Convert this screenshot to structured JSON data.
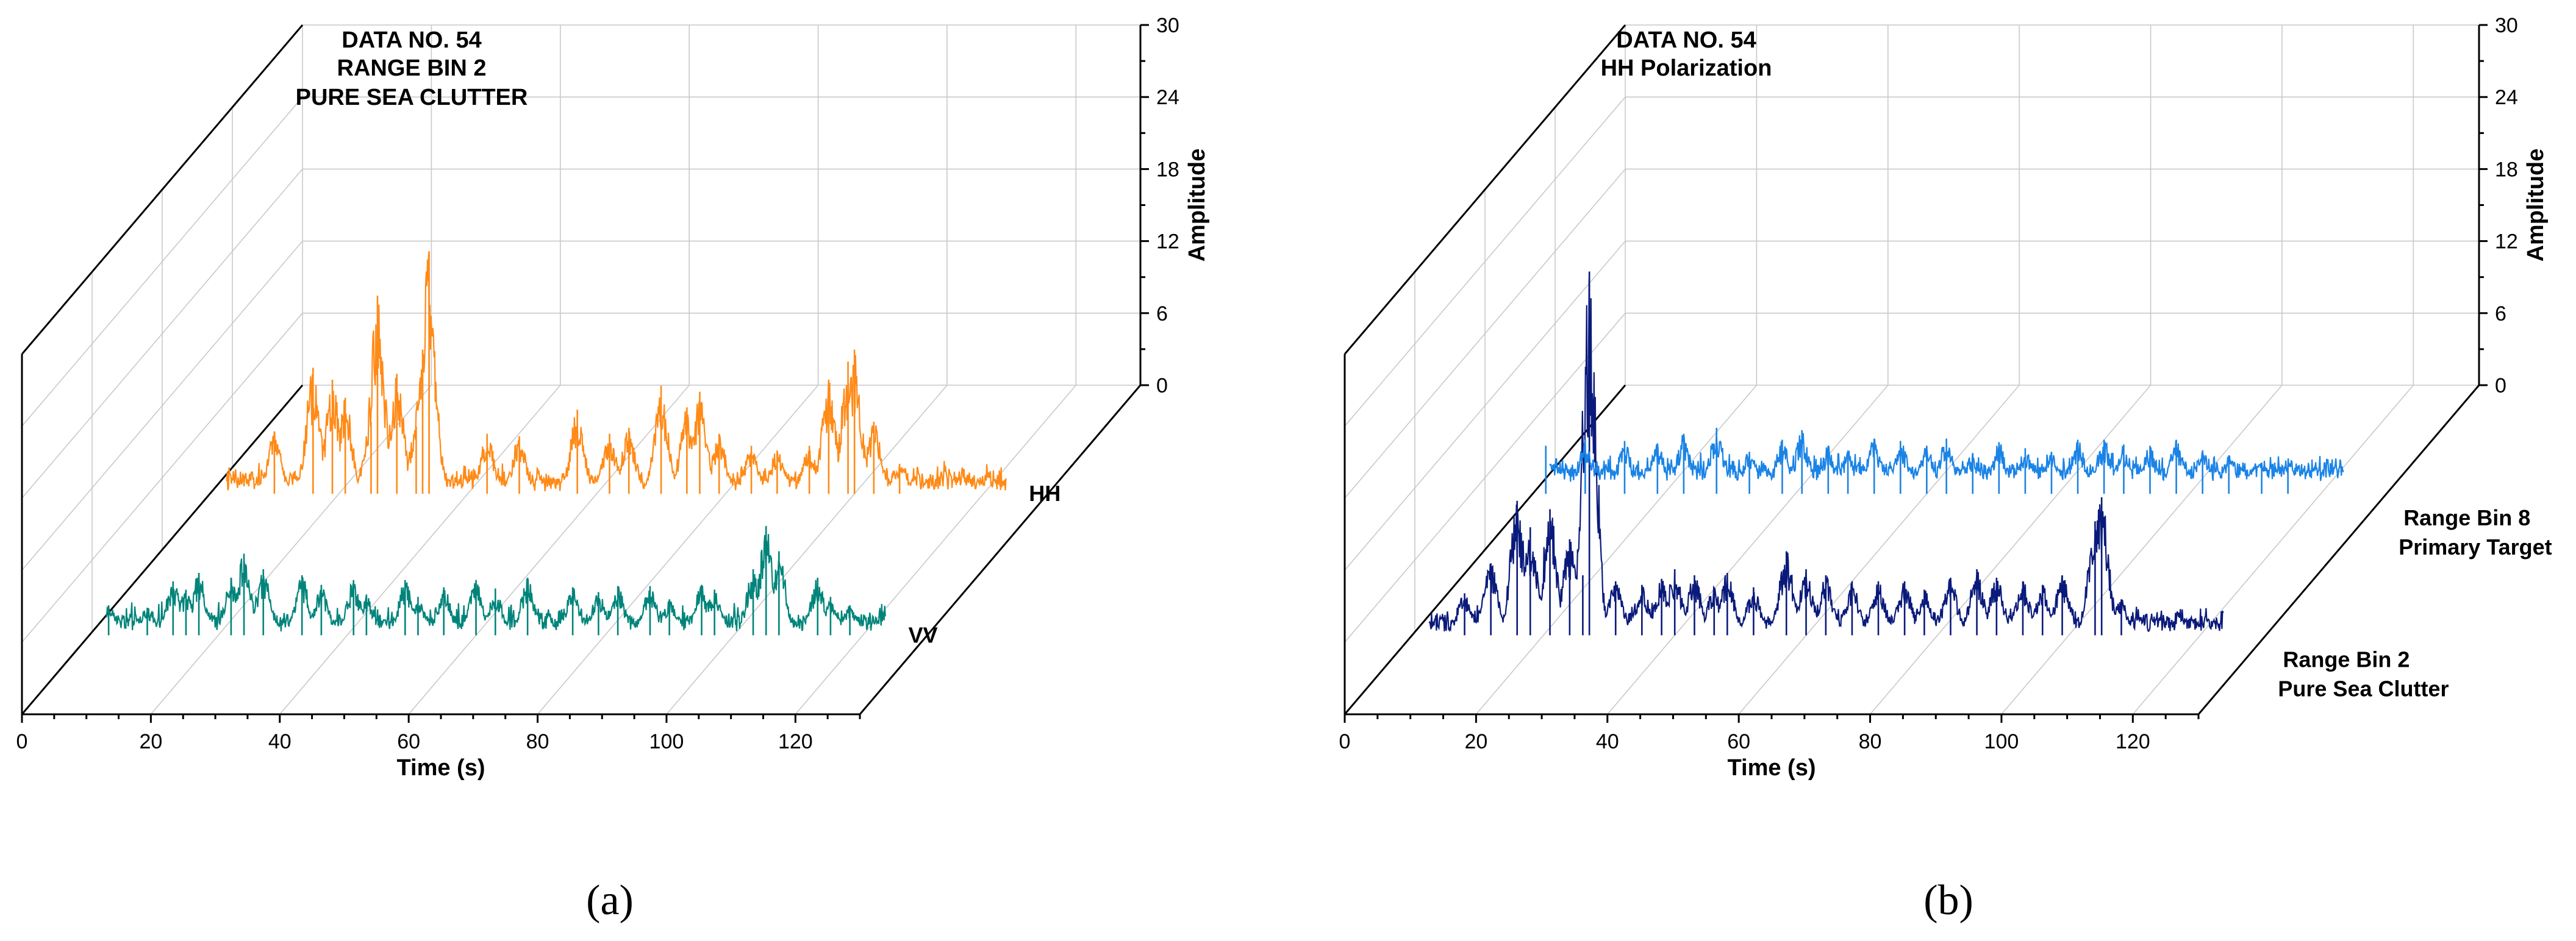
{
  "chart_data": [
    {
      "type": "line",
      "panel_caption": "(a)",
      "annotation": [
        "DATA NO. 54",
        "RANGE BIN 2",
        "PURE SEA CLUTTER"
      ],
      "xlabel": "Time (s)",
      "zlabel": "Amplitude",
      "x_ticks": [
        0,
        20,
        40,
        60,
        80,
        100,
        120
      ],
      "z_ticks": [
        0,
        6,
        12,
        18,
        24,
        30
      ],
      "xlim": [
        0,
        130
      ],
      "zlim": [
        0,
        30
      ],
      "series": [
        {
          "name": "VV",
          "color": "#00847a",
          "baseline": 0.3,
          "spikes": [
            [
              3,
              2.5
            ],
            [
              9,
              2.3
            ],
            [
              13,
              4.5
            ],
            [
              15,
              3.8
            ],
            [
              17,
              5.2
            ],
            [
              22,
              4.8
            ],
            [
              24,
              6.8
            ],
            [
              27,
              5.5
            ],
            [
              33,
              5.0
            ],
            [
              36,
              4.2
            ],
            [
              41,
              4.6
            ],
            [
              43,
              3.4
            ],
            [
              49,
              4.6
            ],
            [
              51,
              3.2
            ],
            [
              55,
              4.0
            ],
            [
              60,
              4.6
            ],
            [
              63,
              3.9
            ],
            [
              68,
              4.8
            ],
            [
              75,
              4.0
            ],
            [
              79,
              3.6
            ],
            [
              82,
              4.1
            ],
            [
              87,
              4.1
            ],
            [
              90,
              3.0
            ],
            [
              95,
              4.2
            ],
            [
              97,
              3.8
            ],
            [
              103,
              5.5
            ],
            [
              105,
              9.1
            ],
            [
              107,
              7.0
            ],
            [
              113,
              4.8
            ],
            [
              115,
              3.2
            ],
            [
              118,
              2.5
            ]
          ]
        },
        {
          "name": "HH",
          "color": "#ff8a17",
          "baseline": 0.2,
          "spikes": [
            [
              10,
              5.2
            ],
            [
              16,
              10.5
            ],
            [
              19,
              9.5
            ],
            [
              21,
              8.0
            ],
            [
              25,
              6.0
            ],
            [
              26,
              16.5
            ],
            [
              29,
              10.0
            ],
            [
              32,
              5.6
            ],
            [
              33,
              12.0
            ],
            [
              34,
              20.2
            ],
            [
              43,
              5.0
            ],
            [
              48,
              4.8
            ],
            [
              57,
              7.0
            ],
            [
              62,
              5.0
            ],
            [
              65,
              5.5
            ],
            [
              70,
              9.0
            ],
            [
              74,
              7.2
            ],
            [
              76,
              8.5
            ],
            [
              79,
              5.0
            ],
            [
              84,
              4.0
            ],
            [
              88,
              3.6
            ],
            [
              93,
              4.0
            ],
            [
              96,
              9.5
            ],
            [
              99,
              11.0
            ],
            [
              100,
              12.0
            ],
            [
              103,
              6.0
            ],
            [
              107,
              2.5
            ]
          ]
        }
      ]
    },
    {
      "type": "line",
      "panel_caption": "(b)",
      "annotation": [
        "DATA NO. 54",
        "HH Polarization"
      ],
      "xlabel": "Time (s)",
      "zlabel": "Amplitude",
      "x_ticks": [
        0,
        20,
        40,
        60,
        80,
        100,
        120
      ],
      "z_ticks": [
        0,
        6,
        12,
        18,
        24,
        30
      ],
      "xlim": [
        0,
        130
      ],
      "zlim": [
        0,
        30
      ],
      "series": [
        {
          "name": "Range Bin 2 Pure Sea Clutter",
          "label_lines": [
            "Range Bin 2",
            "Pure Sea Clutter"
          ],
          "color": "#0a1a7a",
          "baseline": 0.2,
          "spikes": [
            [
              8,
              3.5
            ],
            [
              12,
              6.0
            ],
            [
              16,
              11.2
            ],
            [
              18,
              9.0
            ],
            [
              21,
              10.5
            ],
            [
              24,
              8.0
            ],
            [
              26,
              5.0
            ],
            [
              27,
              30.3
            ],
            [
              31,
              4.5
            ],
            [
              35,
              4.2
            ],
            [
              38,
              4.7
            ],
            [
              40,
              5.5
            ],
            [
              43,
              5.0
            ],
            [
              46,
              4.0
            ],
            [
              48,
              5.2
            ],
            [
              52,
              4.0
            ],
            [
              57,
              7.0
            ],
            [
              60,
              5.5
            ],
            [
              63,
              5.0
            ],
            [
              67,
              4.5
            ],
            [
              71,
              4.5
            ],
            [
              75,
              4.5
            ],
            [
              78,
              3.8
            ],
            [
              82,
              4.8
            ],
            [
              86,
              5.5
            ],
            [
              89,
              4.8
            ],
            [
              93,
              4.5
            ],
            [
              96,
              4.2
            ],
            [
              99,
              5.0
            ],
            [
              104,
              9.5
            ],
            [
              105,
              11.5
            ],
            [
              108,
              3.0
            ]
          ]
        },
        {
          "name": "Range Bin 8 Primary Target",
          "label_lines": [
            "Range Bin 8",
            "Primary Target"
          ],
          "color": "#1a83e6",
          "baseline": 1.0,
          "spikes": [
            [
              2,
              4.0
            ],
            [
              8,
              4.5
            ],
            [
              14,
              4.4
            ],
            [
              19,
              4.2
            ],
            [
              23,
              5.0
            ],
            [
              28,
              5.5
            ],
            [
              33,
              3.5
            ],
            [
              38,
              4.5
            ],
            [
              41,
              5.3
            ],
            [
              45,
              4.0
            ],
            [
              48,
              3.6
            ],
            [
              52,
              4.6
            ],
            [
              56,
              4.4
            ],
            [
              60,
              4.0
            ],
            [
              63,
              4.6
            ],
            [
              67,
              3.4
            ],
            [
              71,
              4.3
            ],
            [
              75,
              3.8
            ],
            [
              79,
              3.5
            ],
            [
              83,
              4.5
            ],
            [
              87,
              4.5
            ],
            [
              90,
              4.1
            ],
            [
              94,
              4.0
            ],
            [
              98,
              4.5
            ],
            [
              102,
              3.6
            ],
            [
              106,
              3.2
            ],
            [
              111,
              2.6
            ],
            [
              115,
              2.4
            ]
          ]
        }
      ]
    }
  ]
}
